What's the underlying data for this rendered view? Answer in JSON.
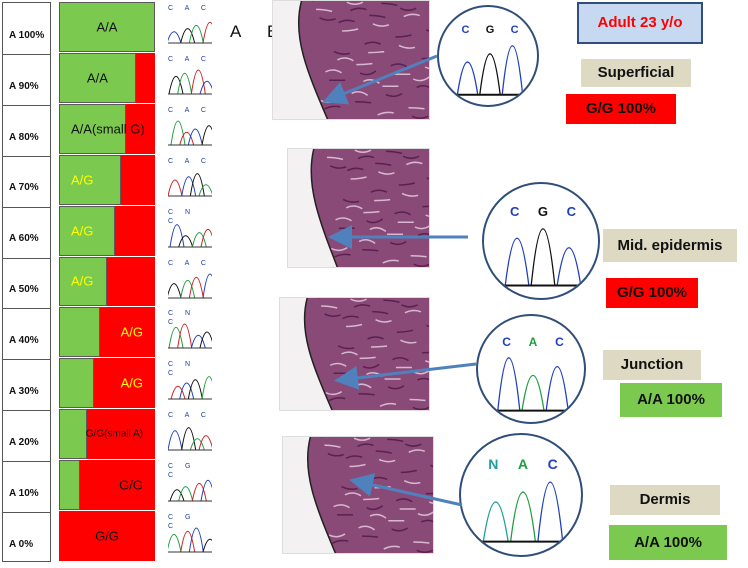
{
  "panels": {
    "a": "A",
    "b": "B"
  },
  "panel_a": {
    "percent_labels": [
      "A 100%",
      "A  90%",
      "A  80%",
      "A  70%",
      "A  60%",
      "A  50%",
      "A  40%",
      "A  30%",
      "A  20%",
      "A  10%",
      "A    0%"
    ],
    "rows": [
      {
        "label": "A/A",
        "a_fraction": 1.0,
        "label_color": "#111111"
      },
      {
        "label": "A/A",
        "a_fraction": 0.8,
        "label_color": "#111111"
      },
      {
        "label": "A/A(small G)",
        "a_fraction": 0.7,
        "label_color": "#111111"
      },
      {
        "label": "A/G",
        "a_fraction": 0.65,
        "label_color": "#ffff00"
      },
      {
        "label": "A/G",
        "a_fraction": 0.58,
        "label_color": "#ffff00"
      },
      {
        "label": "A/G",
        "a_fraction": 0.5,
        "label_color": "#ffff00"
      },
      {
        "label": "A/G",
        "a_fraction": 0.43,
        "label_color": "#ffff00"
      },
      {
        "label": "A/G",
        "a_fraction": 0.36,
        "label_color": "#ffff00"
      },
      {
        "label": "G/G(small A)",
        "a_fraction": 0.29,
        "label_color": "#111111"
      },
      {
        "label": "G/G",
        "a_fraction": 0.22,
        "label_color": "#111111"
      },
      {
        "label": "G/G",
        "a_fraction": 0.0,
        "label_color": "#111111"
      }
    ],
    "chromatogram_bases": [
      "C A C",
      "C A C",
      "C A C",
      "C A C",
      "C N C",
      "C A C",
      "C N C",
      "C N C",
      "C A C",
      "C G C",
      "C G C"
    ]
  },
  "panel_b": {
    "title": "Adult 23 y/o",
    "samples": [
      {
        "tissue": "Superficial",
        "result": "G/G 100%",
        "result_bg": "#ff0000",
        "result_color": "#111111",
        "bases": [
          "C",
          "G",
          "C"
        ]
      },
      {
        "tissue": "Mid. epidermis",
        "result": "G/G 100%",
        "result_bg": "#ff0000",
        "result_color": "#111111",
        "bases": [
          "C",
          "G",
          "C"
        ]
      },
      {
        "tissue": "Junction",
        "result": "A/A 100%",
        "result_bg": "#7cc94f",
        "result_color": "#111111",
        "bases": [
          "C",
          "A",
          "C"
        ]
      },
      {
        "tissue": "Dermis",
        "result": "A/A 100%",
        "result_bg": "#7cc94f",
        "result_color": "#111111",
        "bases": [
          "N",
          "A",
          "C"
        ]
      }
    ]
  },
  "colors": {
    "green": "#7cc94f",
    "red": "#ff0000",
    "tag_bg": "#ddd9c3",
    "title_bg": "#c6d9f1",
    "title_border": "#2f4f7a",
    "title_text": "#ff0000",
    "arrow": "#4f81bd"
  }
}
